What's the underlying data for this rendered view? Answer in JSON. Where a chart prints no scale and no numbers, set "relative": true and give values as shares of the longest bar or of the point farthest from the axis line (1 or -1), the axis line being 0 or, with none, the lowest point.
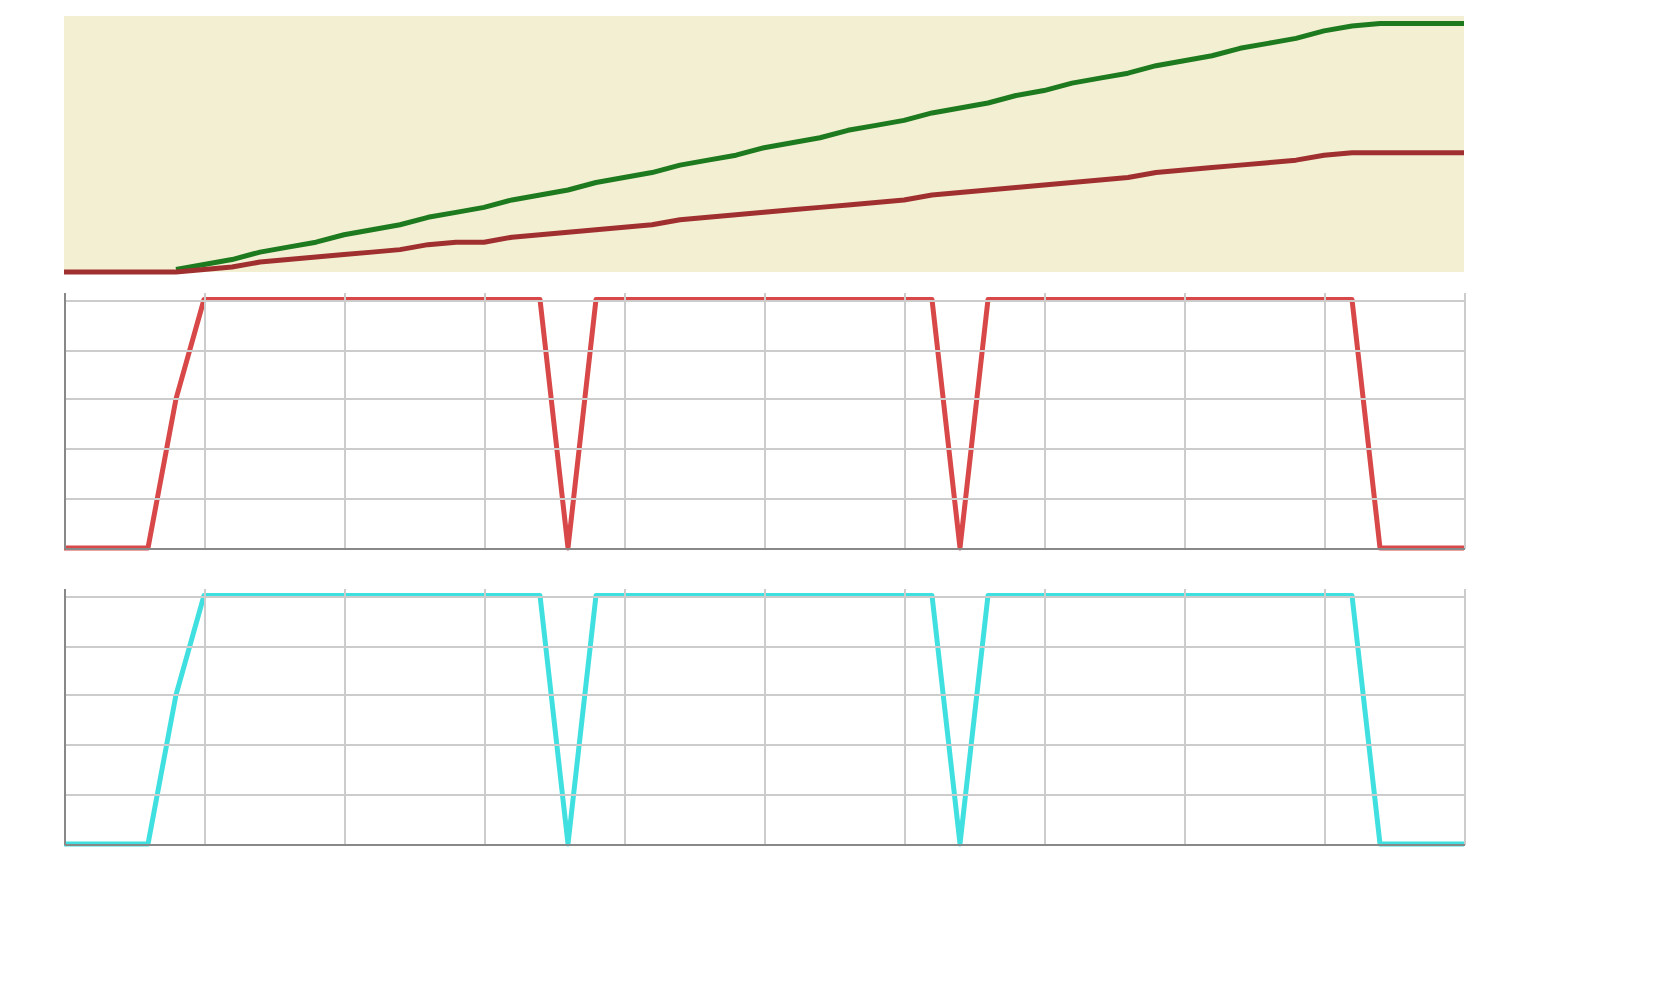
{
  "chart_data": [
    {
      "type": "line",
      "relative": true,
      "grid": true,
      "categories": [
        null,
        null,
        null,
        null,
        null,
        null,
        null,
        null,
        null,
        null,
        null,
        null,
        null,
        null,
        null,
        null,
        null,
        null,
        null,
        null,
        null,
        null,
        null,
        null,
        null,
        null,
        null,
        null,
        null,
        null,
        null,
        null,
        null,
        null,
        null,
        null,
        null,
        null,
        null,
        null,
        null,
        null,
        null,
        null,
        null,
        null,
        null,
        null,
        null,
        null,
        null
      ],
      "series": [
        {
          "color": "#1e7a1e",
          "values": [
            null,
            null,
            null,
            null,
            0.01,
            0.03,
            0.05,
            0.08,
            0.1,
            0.12,
            0.15,
            0.17,
            0.19,
            0.22,
            0.24,
            0.26,
            0.29,
            0.31,
            0.33,
            0.36,
            0.38,
            0.4,
            0.43,
            0.45,
            0.47,
            0.5,
            0.52,
            0.54,
            0.57,
            0.59,
            0.61,
            0.64,
            0.66,
            0.68,
            0.71,
            0.73,
            0.76,
            0.78,
            0.8,
            0.83,
            0.85,
            0.87,
            0.9,
            0.92,
            0.94,
            0.97,
            0.99,
            1,
            1,
            1,
            1
          ]
        },
        {
          "color": "#a03030",
          "values": [
            0,
            0,
            0,
            0,
            0,
            0.01,
            0.02,
            0.04,
            0.05,
            0.06,
            0.07,
            0.08,
            0.09,
            0.11,
            0.12,
            0.12,
            0.14,
            0.15,
            0.16,
            0.17,
            0.18,
            0.19,
            0.21,
            0.22,
            0.23,
            0.24,
            0.25,
            0.26,
            0.27,
            0.28,
            0.29,
            0.31,
            0.32,
            0.33,
            0.34,
            0.35,
            0.36,
            0.37,
            0.38,
            0.4,
            0.41,
            0.42,
            0.43,
            0.44,
            0.45,
            0.47,
            0.48,
            0.48,
            0.48,
            0.48,
            0.48
          ]
        }
      ]
    },
    {
      "type": "line",
      "relative": true,
      "grid": true,
      "categories": [
        null,
        null,
        null,
        null,
        null,
        null,
        null,
        null,
        null,
        null,
        null,
        null,
        null,
        null,
        null,
        null,
        null,
        null,
        null,
        null,
        null,
        null,
        null,
        null,
        null,
        null,
        null,
        null,
        null,
        null,
        null,
        null,
        null,
        null,
        null,
        null,
        null,
        null,
        null,
        null,
        null,
        null,
        null,
        null,
        null,
        null,
        null,
        null,
        null,
        null,
        null
      ],
      "series": [
        {
          "color": "#d84848",
          "values": [
            0,
            0,
            0,
            0,
            0.6,
            1,
            1,
            1,
            1,
            1,
            1,
            1,
            1,
            1,
            1,
            1,
            1,
            1,
            0,
            1,
            1,
            1,
            1,
            1,
            1,
            1,
            1,
            1,
            1,
            1,
            1,
            1,
            0,
            1,
            1,
            1,
            1,
            1,
            1,
            1,
            1,
            1,
            1,
            1,
            1,
            1,
            1,
            0,
            0,
            0,
            0
          ]
        }
      ]
    },
    {
      "type": "line",
      "relative": true,
      "grid": true,
      "categories": [
        null,
        null,
        null,
        null,
        null,
        null,
        null,
        null,
        null,
        null,
        null,
        null,
        null,
        null,
        null,
        null,
        null,
        null,
        null,
        null,
        null,
        null,
        null,
        null,
        null,
        null,
        null,
        null,
        null,
        null,
        null,
        null,
        null,
        null,
        null,
        null,
        null,
        null,
        null,
        null,
        null,
        null,
        null,
        null,
        null,
        null,
        null,
        null,
        null,
        null,
        null
      ],
      "series": [
        {
          "color": "#40e0e0",
          "values": [
            0,
            0,
            0,
            0,
            0.6,
            1,
            1,
            1,
            1,
            1,
            1,
            1,
            1,
            1,
            1,
            1,
            1,
            1,
            0,
            1,
            1,
            1,
            1,
            1,
            1,
            1,
            1,
            1,
            1,
            1,
            1,
            1,
            0,
            1,
            1,
            1,
            1,
            1,
            1,
            1,
            1,
            1,
            1,
            1,
            1,
            1,
            1,
            0,
            0,
            0,
            0
          ]
        }
      ]
    }
  ]
}
